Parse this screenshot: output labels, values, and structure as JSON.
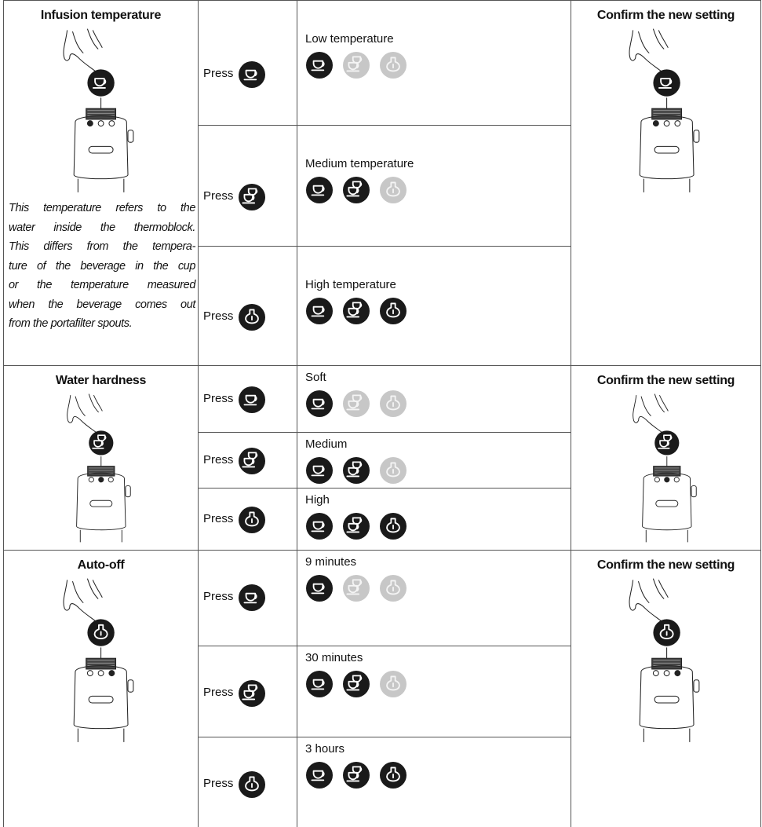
{
  "sections": [
    {
      "title": "Infusion temperature",
      "note": [
        "This temperature refers to the",
        "water inside the thermoblock.",
        "This differs from the tempera-",
        "ture of the beverage in the cup",
        "or the temperature measured",
        "when the beverage comes out",
        "from the portafilter spouts."
      ],
      "rows": [
        {
          "action": "Press",
          "option": "Low temperature"
        },
        {
          "action": "Press",
          "option": "Medium temperature"
        },
        {
          "action": "Press",
          "option": "High temperature"
        }
      ],
      "confirm": "Confirm the new setting"
    },
    {
      "title": "Water hardness",
      "rows": [
        {
          "action": "Press",
          "option": "Soft"
        },
        {
          "action": "Press",
          "option": "Medium"
        },
        {
          "action": "Press",
          "option": "High"
        }
      ],
      "confirm": "Confirm the new setting"
    },
    {
      "title": "Auto-off",
      "rows": [
        {
          "action": "Press",
          "option": "9 minutes"
        },
        {
          "action": "Press",
          "option": "30 minutes"
        },
        {
          "action": "Press",
          "option": "3 hours"
        }
      ],
      "confirm": "Confirm the new setting"
    }
  ]
}
